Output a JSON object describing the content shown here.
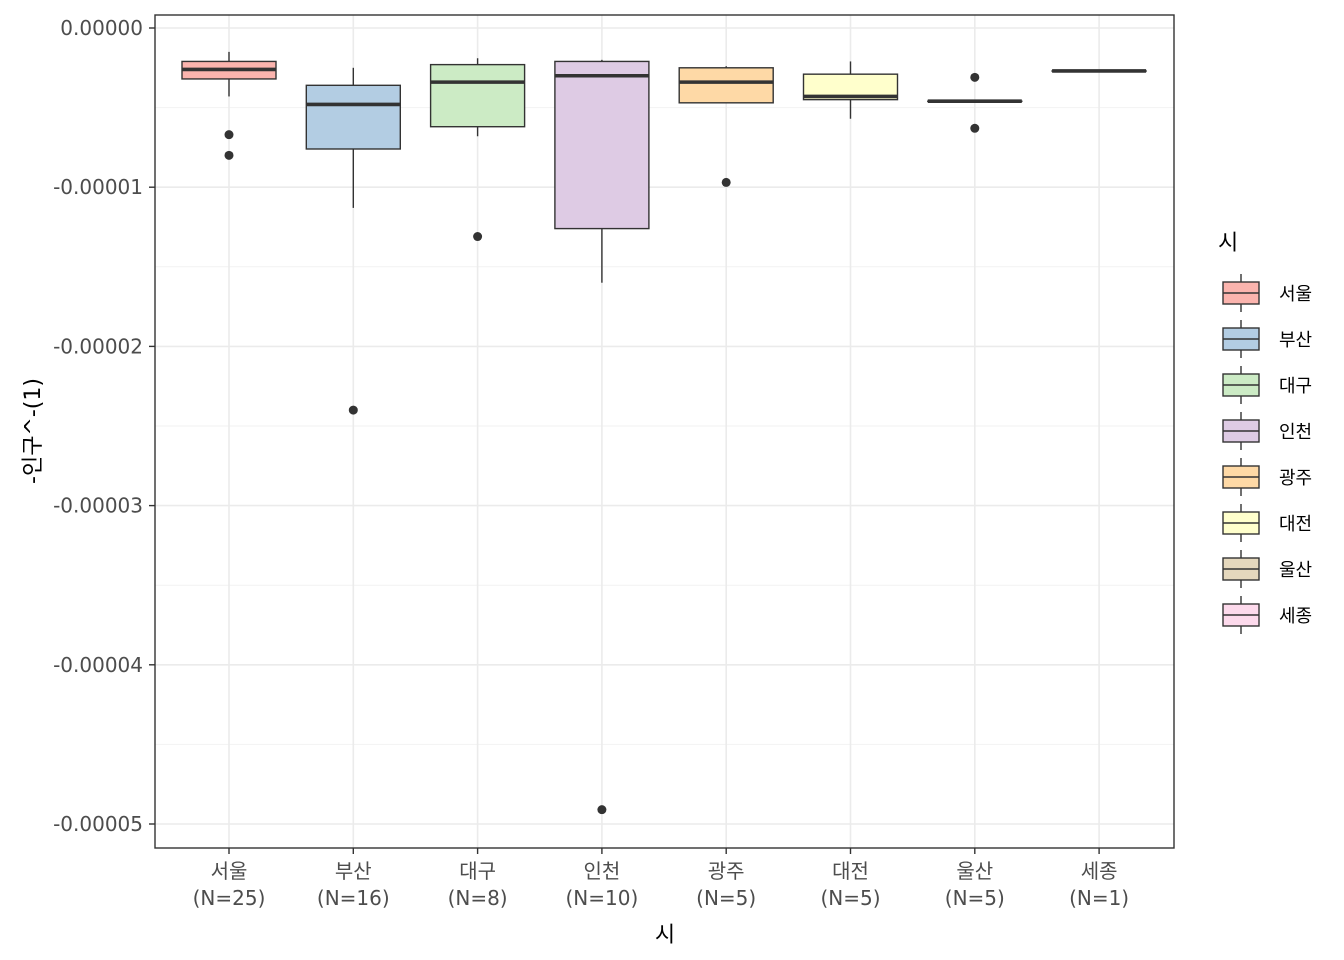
{
  "chart_data": {
    "type": "boxplot",
    "xlabel": "시",
    "ylabel": "-인구^-(1)",
    "ylim": [
      -5.15e-05,
      8e-07
    ],
    "yticks": [
      0,
      -1e-05,
      -2e-05,
      -3e-05,
      -4e-05,
      -5e-05
    ],
    "ytick_labels": [
      "0.00000",
      "-0.00001",
      "-0.00002",
      "-0.00003",
      "-0.00004",
      "-0.00005"
    ],
    "grid": true,
    "legend": {
      "title": "시",
      "placement": "right"
    },
    "categories": [
      {
        "name": "서울",
        "n_label": "(N=25)",
        "color": "#FBB4AE",
        "box": {
          "whisker_low": -4.3e-06,
          "q1": -3.2e-06,
          "median": -2.6e-06,
          "q3": -2.1e-06,
          "whisker_high": -1.5e-06
        },
        "outliers": [
          -6.7e-06,
          -8e-06
        ]
      },
      {
        "name": "부산",
        "n_label": "(N=16)",
        "color": "#B3CDE3",
        "box": {
          "whisker_low": -1.13e-05,
          "q1": -7.6e-06,
          "median": -4.8e-06,
          "q3": -3.6e-06,
          "whisker_high": -2.5e-06
        },
        "outliers": [
          -2.4e-05
        ]
      },
      {
        "name": "대구",
        "n_label": "(N=8)",
        "color": "#CCEBC5",
        "box": {
          "whisker_low": -6.8e-06,
          "q1": -6.2e-06,
          "median": -3.4e-06,
          "q3": -2.3e-06,
          "whisker_high": -1.9e-06
        },
        "outliers": [
          -1.31e-05
        ]
      },
      {
        "name": "인천",
        "n_label": "(N=10)",
        "color": "#DECBE4",
        "box": {
          "whisker_low": -1.6e-05,
          "q1": -1.26e-05,
          "median": -3e-06,
          "q3": -2.1e-06,
          "whisker_high": -2e-06
        },
        "outliers": [
          -4.91e-05
        ]
      },
      {
        "name": "광주",
        "n_label": "(N=5)",
        "color": "#FED9A6",
        "box": {
          "whisker_low": -4.7e-06,
          "q1": -4.7e-06,
          "median": -3.4e-06,
          "q3": -2.5e-06,
          "whisker_high": -2.4e-06
        },
        "outliers": [
          -9.7e-06
        ]
      },
      {
        "name": "대전",
        "n_label": "(N=5)",
        "color": "#FFFFCC",
        "box": {
          "whisker_low": -5.7e-06,
          "q1": -4.5e-06,
          "median": -4.3e-06,
          "q3": -2.9e-06,
          "whisker_high": -2.1e-06
        },
        "outliers": []
      },
      {
        "name": "울산",
        "n_label": "(N=5)",
        "color": "#E5D8BD",
        "box": {
          "whisker_low": -4.6e-06,
          "q1": -4.6e-06,
          "median": -4.6e-06,
          "q3": -4.6e-06,
          "whisker_high": -4.6e-06
        },
        "outliers": [
          -3.1e-06,
          -6.3e-06
        ]
      },
      {
        "name": "세종",
        "n_label": "(N=1)",
        "color": "#FDDAEC",
        "box": {
          "whisker_low": -2.7e-06,
          "q1": -2.7e-06,
          "median": -2.7e-06,
          "q3": -2.7e-06,
          "whisker_high": -2.7e-06
        },
        "outliers": []
      }
    ]
  }
}
